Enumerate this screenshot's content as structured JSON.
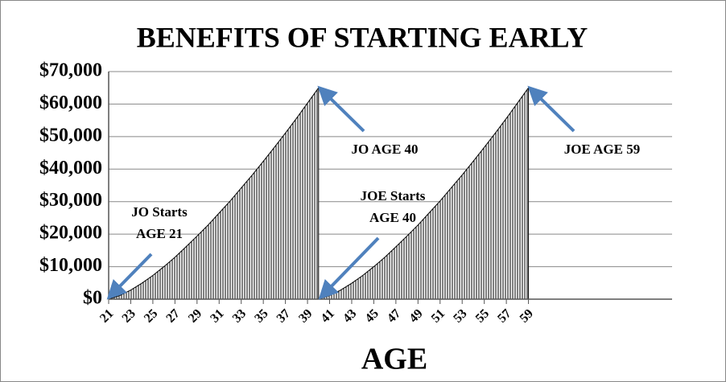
{
  "chart_data": {
    "type": "area",
    "title": "BENEFITS OF STARTING EARLY",
    "x_label": "AGE",
    "x": [
      21,
      22,
      23,
      24,
      25,
      26,
      27,
      28,
      29,
      30,
      31,
      32,
      33,
      34,
      35,
      36,
      37,
      38,
      39,
      40,
      41,
      42,
      43,
      44,
      45,
      46,
      47,
      48,
      49,
      50,
      51,
      52,
      53,
      54,
      55,
      56,
      57,
      58,
      59
    ],
    "series": [
      {
        "name": "JO",
        "color": "#000000",
        "values": [
          0,
          1100,
          2800,
          4900,
          7300,
          10000,
          12900,
          16100,
          19400,
          22800,
          26500,
          30200,
          34200,
          38200,
          42400,
          46700,
          51100,
          55600,
          60300,
          65000,
          null,
          null,
          null,
          null,
          null,
          null,
          null,
          null,
          null,
          null,
          null,
          null,
          null,
          null,
          null,
          null,
          null,
          null,
          null
        ]
      },
      {
        "name": "JOE",
        "color": "#000000",
        "values": [
          null,
          null,
          null,
          null,
          null,
          null,
          null,
          null,
          null,
          null,
          null,
          null,
          null,
          null,
          null,
          null,
          null,
          null,
          null,
          0,
          1100,
          2800,
          4900,
          7300,
          10000,
          12900,
          16100,
          19400,
          22800,
          26500,
          30200,
          34200,
          38200,
          42400,
          46700,
          51100,
          55600,
          60300,
          65000
        ]
      }
    ],
    "xlim": [
      21,
      72
    ],
    "xticks": [
      21,
      23,
      25,
      27,
      29,
      31,
      33,
      35,
      37,
      39,
      41,
      43,
      45,
      47,
      49,
      51,
      53,
      55,
      57,
      59
    ],
    "ylim": [
      0,
      70000
    ],
    "yticks": [
      {
        "value": 0,
        "label": "$0"
      },
      {
        "value": 10000,
        "label": "$10,000"
      },
      {
        "value": 20000,
        "label": "$20,000"
      },
      {
        "value": 30000,
        "label": "$30,000"
      },
      {
        "value": 40000,
        "label": "$40,000"
      },
      {
        "value": 50000,
        "label": "$50,000"
      },
      {
        "value": 60000,
        "label": "$60,000"
      },
      {
        "value": 70000,
        "label": "$70,000"
      }
    ],
    "grid": true,
    "annotations": [
      {
        "lines": [
          "JO Starts",
          "AGE 21"
        ]
      },
      {
        "lines": [
          "JO AGE 40"
        ]
      },
      {
        "lines": [
          "JOE Starts",
          "AGE 40"
        ]
      },
      {
        "lines": [
          "JOE AGE 59"
        ]
      }
    ]
  }
}
